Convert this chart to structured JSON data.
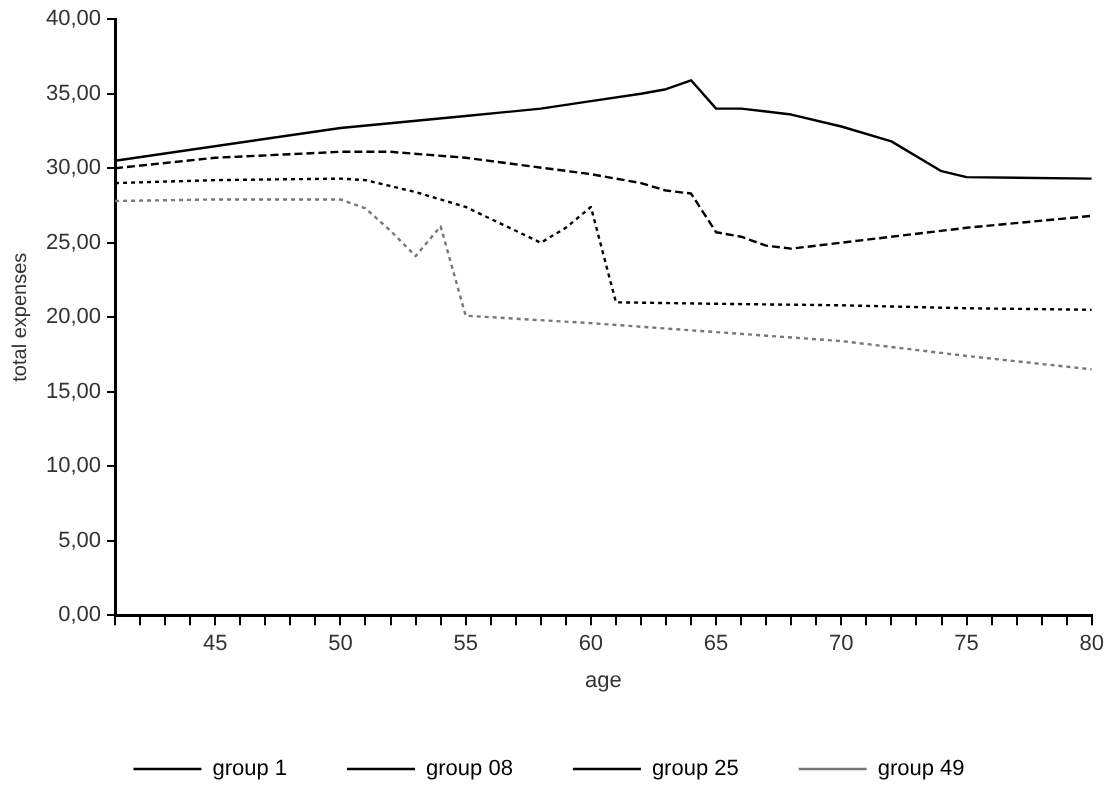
{
  "chart_data": {
    "type": "line",
    "xlabel": "age",
    "ylabel": "total expenses",
    "xlim": [
      41,
      80
    ],
    "ylim": [
      0,
      40
    ],
    "yticks": [
      {
        "value": 0,
        "label": "0,00"
      },
      {
        "value": 5,
        "label": "5,00"
      },
      {
        "value": 10,
        "label": "10,00"
      },
      {
        "value": 15,
        "label": "15,00"
      },
      {
        "value": 20,
        "label": "20,00"
      },
      {
        "value": 25,
        "label": "25,00"
      },
      {
        "value": 30,
        "label": "30,00"
      },
      {
        "value": 35,
        "label": "35,00"
      },
      {
        "value": 40,
        "label": "40,00"
      }
    ],
    "xticks": [
      {
        "value": 41,
        "label": null
      },
      {
        "value": 42,
        "label": null
      },
      {
        "value": 43,
        "label": null
      },
      {
        "value": 44,
        "label": null
      },
      45,
      {
        "value": 46,
        "label": null
      },
      {
        "value": 47,
        "label": null
      },
      {
        "value": 48,
        "label": null
      },
      {
        "value": 49,
        "label": null
      },
      50,
      {
        "value": 51,
        "label": null
      },
      {
        "value": 52,
        "label": null
      },
      {
        "value": 53,
        "label": null
      },
      {
        "value": 54,
        "label": null
      },
      55,
      {
        "value": 56,
        "label": null
      },
      {
        "value": 57,
        "label": null
      },
      {
        "value": 58,
        "label": null
      },
      {
        "value": 59,
        "label": null
      },
      60,
      {
        "value": 61,
        "label": null
      },
      {
        "value": 62,
        "label": null
      },
      {
        "value": 63,
        "label": null
      },
      {
        "value": 64,
        "label": null
      },
      65,
      {
        "value": 66,
        "label": null
      },
      {
        "value": 67,
        "label": null
      },
      {
        "value": 68,
        "label": null
      },
      {
        "value": 69,
        "label": null
      },
      70,
      {
        "value": 71,
        "label": null
      },
      {
        "value": 72,
        "label": null
      },
      {
        "value": 73,
        "label": null
      },
      {
        "value": 74,
        "label": null
      },
      75,
      {
        "value": 76,
        "label": null
      },
      {
        "value": 77,
        "label": null
      },
      {
        "value": 78,
        "label": null
      },
      {
        "value": 79,
        "label": null
      },
      80
    ],
    "grid": false,
    "legend": "bottom",
    "marker": "none",
    "series": [
      {
        "name": "group 1",
        "color": "#000000",
        "line_style": "solid",
        "x": [
          41,
          50,
          55,
          58,
          60,
          62,
          63,
          64,
          65,
          66,
          68,
          70,
          72,
          74,
          75,
          80
        ],
        "values": [
          30.5,
          32.7,
          33.5,
          34.0,
          34.5,
          35.0,
          35.3,
          35.9,
          34.0,
          34.0,
          33.6,
          32.8,
          31.8,
          29.8,
          29.4,
          29.3
        ]
      },
      {
        "name": "group 08",
        "color": "#000000",
        "line_style": "dashed",
        "x": [
          41,
          45,
          50,
          52,
          55,
          60,
          62,
          63,
          64,
          65,
          66,
          67,
          68,
          70,
          75,
          80
        ],
        "values": [
          30.0,
          30.7,
          31.1,
          31.1,
          30.7,
          29.6,
          29.0,
          28.5,
          28.3,
          25.7,
          25.4,
          24.8,
          24.6,
          25.0,
          26.0,
          26.8
        ]
      },
      {
        "name": "group 25",
        "color": "#000000",
        "line_style": "dotted",
        "x": [
          41,
          45,
          50,
          51,
          53,
          55,
          57,
          58,
          59,
          60,
          61,
          65,
          70,
          75,
          80
        ],
        "values": [
          29.0,
          29.2,
          29.3,
          29.2,
          28.4,
          27.4,
          25.8,
          25.0,
          26.0,
          27.4,
          21.0,
          20.9,
          20.8,
          20.6,
          20.5
        ]
      },
      {
        "name": "group 49",
        "color": "#777777",
        "line_style": "dotted",
        "x": [
          41,
          45,
          50,
          51,
          52,
          53,
          54,
          55,
          60,
          65,
          70,
          75,
          80
        ],
        "values": [
          27.8,
          27.9,
          27.9,
          27.3,
          25.8,
          24.1,
          26.1,
          20.1,
          19.6,
          19.0,
          18.4,
          17.4,
          16.5
        ]
      }
    ]
  }
}
